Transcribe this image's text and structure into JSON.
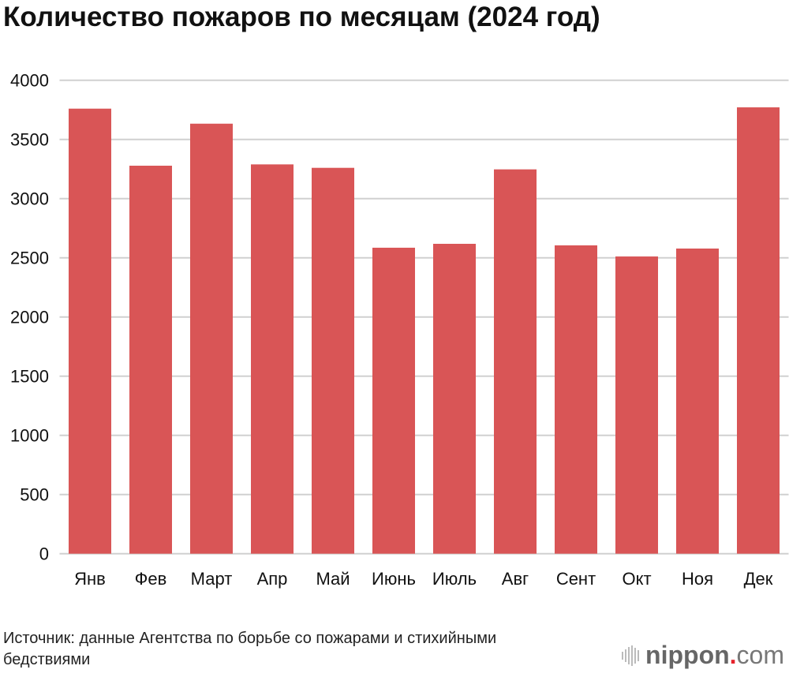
{
  "chart_data": {
    "type": "bar",
    "title": "Количество пожаров по месяцам (2024 год)",
    "xlabel": "",
    "ylabel": "",
    "categories": [
      "Янв",
      "Фев",
      "Март",
      "Апр",
      "Май",
      "Июнь",
      "Июль",
      "Авг",
      "Сент",
      "Окт",
      "Ноя",
      "Дек"
    ],
    "values": [
      3760,
      3278,
      3633,
      3289,
      3260,
      2585,
      2618,
      3247,
      2605,
      2511,
      2578,
      3771
    ],
    "ylim": [
      0,
      4000
    ],
    "yticks": [
      0,
      500,
      1000,
      1500,
      2000,
      2500,
      3000,
      3500,
      4000
    ],
    "grid": true,
    "bar_color": "#d95556",
    "grid_color": "#d0d0d0"
  },
  "source": "Источник: данные Агентства по борьбе со пожарами и стихийными бедствиями",
  "logo": {
    "name": "nippon",
    "dot": ".",
    "suffix": "com"
  }
}
